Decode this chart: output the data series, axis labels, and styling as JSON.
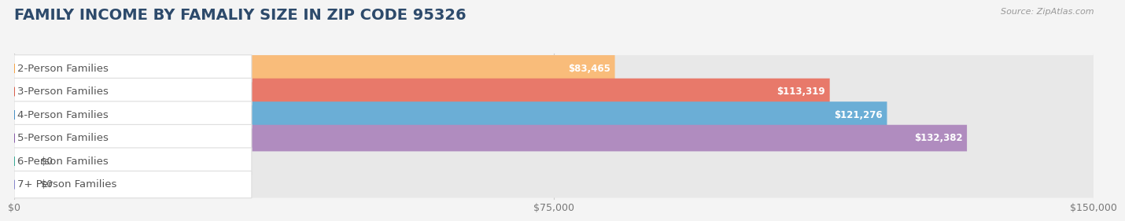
{
  "title": "FAMILY INCOME BY FAMALIY SIZE IN ZIP CODE 95326",
  "source": "Source: ZipAtlas.com",
  "categories": [
    "2-Person Families",
    "3-Person Families",
    "4-Person Families",
    "5-Person Families",
    "6-Person Families",
    "7+ Person Families"
  ],
  "values": [
    83465,
    113319,
    121276,
    132382,
    0,
    0
  ],
  "bar_colors": [
    "#f9bc7a",
    "#e8796a",
    "#6baed6",
    "#b08cbf",
    "#5fc4b0",
    "#b3b8e0"
  ],
  "dot_colors": [
    "#f5a54a",
    "#d95f4b",
    "#4a90c4",
    "#8a5faa",
    "#3aaa96",
    "#8888cc"
  ],
  "value_labels": [
    "$83,465",
    "$113,319",
    "$121,276",
    "$132,382",
    "$0",
    "$0"
  ],
  "xlim": [
    0,
    150000
  ],
  "xtick_values": [
    0,
    75000,
    150000
  ],
  "xtick_labels": [
    "$0",
    "$75,000",
    "$150,000"
  ],
  "bg_color": "#f4f4f4",
  "bar_bg_color": "#e8e8e8",
  "title_color": "#2d4a6b",
  "label_color": "#555555",
  "source_color": "#999999",
  "title_fontsize": 14,
  "label_fontsize": 9.5,
  "value_fontsize": 8.5,
  "bar_height": 0.6
}
